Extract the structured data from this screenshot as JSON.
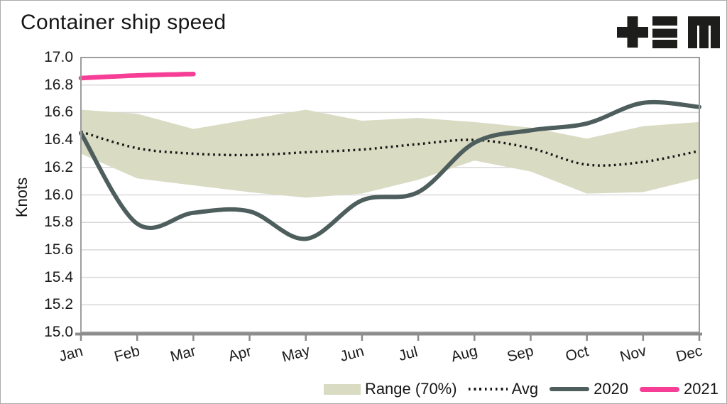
{
  "title": "Container ship speed",
  "brand": {
    "logo_glyphs": "+≡M"
  },
  "legend": {
    "range_label": "Range (70%)",
    "avg_label": "Avg",
    "y2020_label": "2020",
    "y2021_label": "2021"
  },
  "colors": {
    "range_band": "#d9dbc2",
    "avg_line": "#161616",
    "line_2020": "#4d5e5d",
    "line_2021": "#f63e96",
    "gridline": "#d9d9d9",
    "plot_border": "#9d9d9d",
    "axis": "#8c8c8c",
    "text": "#1a1a1a",
    "logo": "#1d1d1b"
  },
  "chart_data": {
    "type": "line",
    "title": "Container ship speed",
    "xlabel": "",
    "ylabel": "Knots",
    "ylim": [
      15.0,
      17.0
    ],
    "ytick_labels": [
      "17.0",
      "16.8",
      "16.6",
      "16.4",
      "16.2",
      "16.0",
      "15.8",
      "15.6",
      "15.4",
      "15.2",
      "15.0"
    ],
    "categories": [
      "Jan",
      "Feb",
      "Mar",
      "Apr",
      "May",
      "Jun",
      "Jul",
      "Aug",
      "Sep",
      "Oct",
      "Nov",
      "Dec"
    ],
    "grid": "horizontal",
    "legend_position": "bottom-right",
    "series": [
      {
        "name": "Range (70%)",
        "type": "band",
        "upper": [
          16.62,
          16.59,
          16.48,
          16.55,
          16.62,
          16.54,
          16.56,
          16.53,
          16.49,
          16.41,
          16.5,
          16.53
        ],
        "lower": [
          16.3,
          16.12,
          16.07,
          16.02,
          15.98,
          16.01,
          16.11,
          16.25,
          16.17,
          16.01,
          16.02,
          16.12
        ]
      },
      {
        "name": "Avg",
        "type": "line",
        "style": "dotted",
        "values": [
          16.46,
          16.34,
          16.3,
          16.29,
          16.31,
          16.33,
          16.37,
          16.4,
          16.34,
          16.22,
          16.24,
          16.32
        ]
      },
      {
        "name": "2020",
        "type": "line",
        "style": "solid",
        "values": [
          16.45,
          15.79,
          15.87,
          15.88,
          15.68,
          15.96,
          16.02,
          16.38,
          16.47,
          16.52,
          16.67,
          16.64
        ]
      },
      {
        "name": "2021",
        "type": "line",
        "style": "solid",
        "values": [
          16.85,
          16.87,
          16.88
        ]
      }
    ]
  }
}
